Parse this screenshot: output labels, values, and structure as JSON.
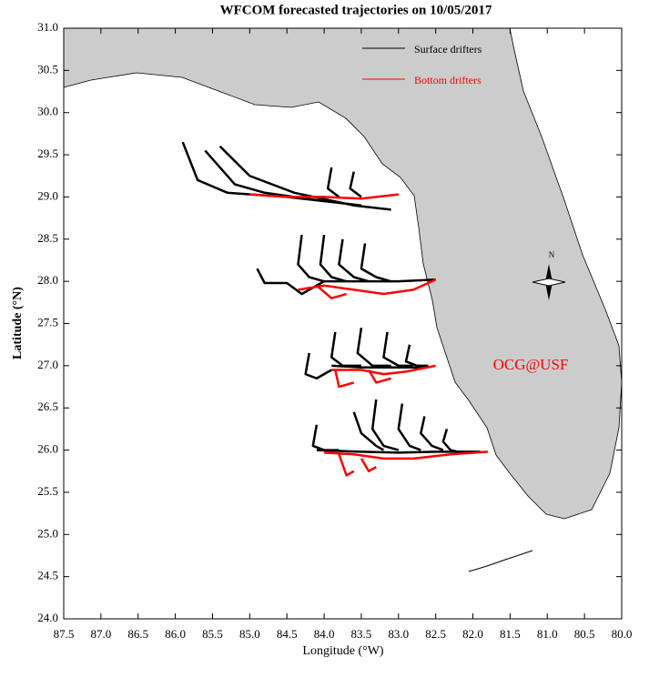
{
  "chart_data": {
    "type": "trajectory",
    "title": "WFCOM forecasted trajectories on 10/05/2017",
    "xlabel": "Longitude (°W)",
    "ylabel": "Latitude (°N)",
    "annotation": "OCG@USF",
    "compass_label": "N",
    "xlim": [
      87.5,
      80.0
    ],
    "ylim": [
      24.0,
      31.0
    ],
    "xticks": [
      87.5,
      {
        "value": 87,
        "label": "87.0"
      },
      86.5,
      {
        "value": 86,
        "label": "86.0"
      },
      85.5,
      {
        "value": 85,
        "label": "85.0"
      },
      84.5,
      {
        "value": 84,
        "label": "84.0"
      },
      83.5,
      {
        "value": 83,
        "label": "83.0"
      },
      82.5,
      {
        "value": 82,
        "label": "82.0"
      },
      81.5,
      {
        "value": 81,
        "label": "81.0"
      },
      80.5,
      {
        "value": 80,
        "label": "80.0"
      }
    ],
    "yticks": [
      {
        "value": 24,
        "label": "24.0"
      },
      24.5,
      {
        "value": 25,
        "label": "25.0"
      },
      25.5,
      {
        "value": 26,
        "label": "26.0"
      },
      26.5,
      {
        "value": 27,
        "label": "27.0"
      },
      27.5,
      {
        "value": 28,
        "label": "28.0"
      },
      28.5,
      {
        "value": 29,
        "label": "29.0"
      },
      29.5,
      {
        "value": 30,
        "label": "30.0"
      },
      30.5,
      {
        "value": 31,
        "label": "31.0"
      }
    ],
    "series": [
      {
        "name": "Surface drifters",
        "color": "#000000",
        "tracks": [
          {
            "x": [
              85.9,
              85.7,
              85.3,
              84.5,
              83.5
            ],
            "y": [
              29.65,
              29.2,
              29.05,
              29.0,
              28.9
            ]
          },
          {
            "x": [
              85.6,
              85.2,
              84.8,
              84.0
            ],
            "y": [
              29.55,
              29.15,
              29.05,
              28.95
            ]
          },
          {
            "x": [
              85.4,
              85.0,
              84.4,
              83.6,
              83.1
            ],
            "y": [
              29.6,
              29.25,
              29.05,
              28.9,
              28.85
            ]
          },
          {
            "x": [
              83.9,
              83.95,
              83.8
            ],
            "y": [
              29.35,
              29.1,
              29.0
            ]
          },
          {
            "x": [
              83.6,
              83.65,
              83.5
            ],
            "y": [
              29.3,
              29.1,
              29.0
            ]
          },
          {
            "x": [
              84.3,
              84.35,
              84.2,
              84.0
            ],
            "y": [
              28.55,
              28.2,
              28.05,
              28.0
            ]
          },
          {
            "x": [
              84.0,
              84.05,
              83.9,
              83.7
            ],
            "y": [
              28.55,
              28.2,
              28.05,
              28.0
            ]
          },
          {
            "x": [
              83.75,
              83.8,
              83.6,
              83.4
            ],
            "y": [
              28.5,
              28.2,
              28.05,
              28.0
            ]
          },
          {
            "x": [
              83.45,
              83.5,
              83.3,
              83.1
            ],
            "y": [
              28.45,
              28.15,
              28.05,
              28.0
            ]
          },
          {
            "x": [
              84.9,
              84.8,
              84.5,
              84.3,
              84.0,
              83.0,
              82.5
            ],
            "y": [
              28.15,
              27.98,
              27.98,
              27.85,
              28.0,
              28.0,
              28.02
            ]
          },
          {
            "x": [
              84.2,
              84.25,
              84.1,
              83.9
            ],
            "y": [
              27.15,
              26.9,
              26.85,
              26.95
            ]
          },
          {
            "x": [
              83.85,
              83.9,
              83.75,
              83.5
            ],
            "y": [
              27.4,
              27.1,
              27.0,
              27.0
            ]
          },
          {
            "x": [
              83.5,
              83.55,
              83.35,
              83.1
            ],
            "y": [
              27.45,
              27.15,
              27.0,
              27.0
            ]
          },
          {
            "x": [
              83.15,
              83.2,
              83.0,
              82.8
            ],
            "y": [
              27.4,
              27.1,
              27.0,
              27.0
            ]
          },
          {
            "x": [
              82.85,
              82.9,
              82.75,
              82.6
            ],
            "y": [
              27.25,
              27.05,
              27.0,
              27.0
            ]
          },
          {
            "x": [
              83.9,
              83.5,
              83.0,
              82.6
            ],
            "y": [
              27.0,
              26.98,
              26.98,
              26.98
            ]
          },
          {
            "x": [
              84.1,
              84.15,
              84.0,
              83.8
            ],
            "y": [
              26.3,
              26.05,
              26.0,
              26.0
            ]
          },
          {
            "x": [
              83.6,
              83.5,
              83.3,
              83.2
            ],
            "y": [
              26.45,
              26.2,
              26.05,
              26.0
            ]
          },
          {
            "x": [
              83.3,
              83.35,
              83.2,
              83.0
            ],
            "y": [
              26.6,
              26.25,
              26.05,
              26.0
            ]
          },
          {
            "x": [
              82.95,
              83.0,
              82.85,
              82.7
            ],
            "y": [
              26.55,
              26.25,
              26.05,
              26.0
            ]
          },
          {
            "x": [
              82.65,
              82.7,
              82.55,
              82.4
            ],
            "y": [
              26.4,
              26.2,
              26.05,
              26.0
            ]
          },
          {
            "x": [
              82.35,
              82.4,
              82.3,
              82.2
            ],
            "y": [
              26.25,
              26.1,
              26.0,
              25.98
            ]
          },
          {
            "x": [
              84.1,
              83.5,
              83.0,
              82.5,
              81.9
            ],
            "y": [
              26.0,
              25.98,
              25.97,
              25.98,
              25.98
            ]
          }
        ]
      },
      {
        "name": "Bottom drifters",
        "color": "#ff0000",
        "tracks": [
          {
            "x": [
              85.0,
              84.5,
              84.0,
              83.5,
              83.0
            ],
            "y": [
              29.03,
              29.0,
              29.0,
              28.98,
              29.03
            ]
          },
          {
            "x": [
              84.35,
              84.0,
              83.6,
              83.2,
              82.8,
              82.5
            ],
            "y": [
              27.9,
              27.95,
              27.9,
              27.85,
              27.9,
              28.02
            ]
          },
          {
            "x": [
              84.1,
              83.9,
              83.7
            ],
            "y": [
              27.95,
              27.8,
              27.85
            ]
          },
          {
            "x": [
              83.9,
              83.5,
              83.2,
              82.9,
              82.5
            ],
            "y": [
              26.95,
              26.95,
              26.9,
              26.93,
              27.0
            ]
          },
          {
            "x": [
              83.85,
              83.8,
              83.6
            ],
            "y": [
              26.95,
              26.75,
              26.8
            ]
          },
          {
            "x": [
              83.4,
              83.3,
              83.1
            ],
            "y": [
              26.95,
              26.8,
              26.85
            ]
          },
          {
            "x": [
              84.0,
              83.6,
              83.2,
              82.8,
              82.3,
              81.8
            ],
            "y": [
              25.97,
              25.95,
              25.9,
              25.9,
              25.95,
              25.98
            ]
          },
          {
            "x": [
              83.8,
              83.7,
              83.6
            ],
            "y": [
              25.95,
              25.7,
              25.75
            ]
          },
          {
            "x": [
              83.5,
              83.4,
              83.3
            ],
            "y": [
              25.9,
              25.75,
              25.8
            ]
          }
        ]
      }
    ]
  }
}
